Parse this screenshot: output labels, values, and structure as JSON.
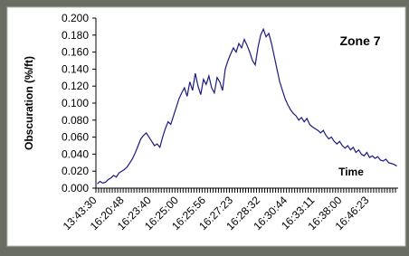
{
  "chart_data": {
    "type": "line",
    "annotation": "Zone 7",
    "x_label": "Time",
    "y_label": "Obscuration (%/ft)",
    "color": "#1a1a80",
    "categories": [
      "13:43:30",
      null,
      null,
      null,
      null,
      null,
      null,
      null,
      null,
      null,
      "16:20:48",
      null,
      null,
      null,
      null,
      null,
      null,
      null,
      null,
      null,
      "16:23:40",
      null,
      null,
      null,
      null,
      null,
      null,
      null,
      null,
      null,
      "16:25:00",
      null,
      null,
      null,
      null,
      null,
      null,
      null,
      null,
      null,
      "16:25:56",
      null,
      null,
      null,
      null,
      null,
      null,
      null,
      null,
      null,
      "16:27:23",
      null,
      null,
      null,
      null,
      null,
      null,
      null,
      null,
      null,
      "16:28:32",
      null,
      null,
      null,
      null,
      null,
      null,
      null,
      null,
      null,
      "16:30:44",
      null,
      null,
      null,
      null,
      null,
      null,
      null,
      null,
      null,
      "16:33:11",
      null,
      null,
      null,
      null,
      null,
      null,
      null,
      null,
      null,
      "16:38:00",
      null,
      null,
      null,
      null,
      null,
      null,
      null,
      null,
      null,
      "16:46:23",
      null,
      null,
      null,
      null,
      null,
      null,
      null,
      null,
      null,
      null
    ],
    "values": [
      0.005,
      0.008,
      0.006,
      0.007,
      0.01,
      0.012,
      0.015,
      0.013,
      0.018,
      0.02,
      0.022,
      0.025,
      0.03,
      0.035,
      0.042,
      0.05,
      0.058,
      0.062,
      0.065,
      0.06,
      0.055,
      0.05,
      0.052,
      0.048,
      0.06,
      0.07,
      0.078,
      0.075,
      0.085,
      0.095,
      0.105,
      0.112,
      0.118,
      0.108,
      0.125,
      0.115,
      0.135,
      0.12,
      0.11,
      0.128,
      0.122,
      0.132,
      0.118,
      0.112,
      0.13,
      0.125,
      0.115,
      0.14,
      0.15,
      0.158,
      0.165,
      0.16,
      0.17,
      0.165,
      0.175,
      0.168,
      0.16,
      0.15,
      0.145,
      0.165,
      0.18,
      0.187,
      0.178,
      0.182,
      0.17,
      0.155,
      0.14,
      0.125,
      0.115,
      0.105,
      0.098,
      0.092,
      0.088,
      0.085,
      0.08,
      0.083,
      0.078,
      0.082,
      0.075,
      0.072,
      0.07,
      0.068,
      0.065,
      0.068,
      0.062,
      0.058,
      0.06,
      0.055,
      0.052,
      0.055,
      0.05,
      0.047,
      0.05,
      0.045,
      0.048,
      0.042,
      0.045,
      0.04,
      0.038,
      0.042,
      0.036,
      0.038,
      0.035,
      0.037,
      0.033,
      0.032,
      0.034,
      0.03,
      0.029,
      0.028,
      0.026
    ],
    "ylim": [
      0,
      0.2
    ],
    "yticks": [
      {
        "value": 0,
        "label": "0.000"
      },
      {
        "value": 0.02,
        "label": "0.020"
      },
      {
        "value": 0.04,
        "label": "0.040"
      },
      {
        "value": 0.06,
        "label": "0.060"
      },
      {
        "value": 0.08,
        "label": "0.080"
      },
      {
        "value": 0.1,
        "label": "0.100"
      },
      {
        "value": 0.12,
        "label": "0.120"
      },
      {
        "value": 0.14,
        "label": "0.140"
      },
      {
        "value": 0.16,
        "label": "0.160"
      },
      {
        "value": 0.18,
        "label": "0.180"
      },
      {
        "value": 0.2,
        "label": "0.200"
      }
    ],
    "grid": false
  }
}
